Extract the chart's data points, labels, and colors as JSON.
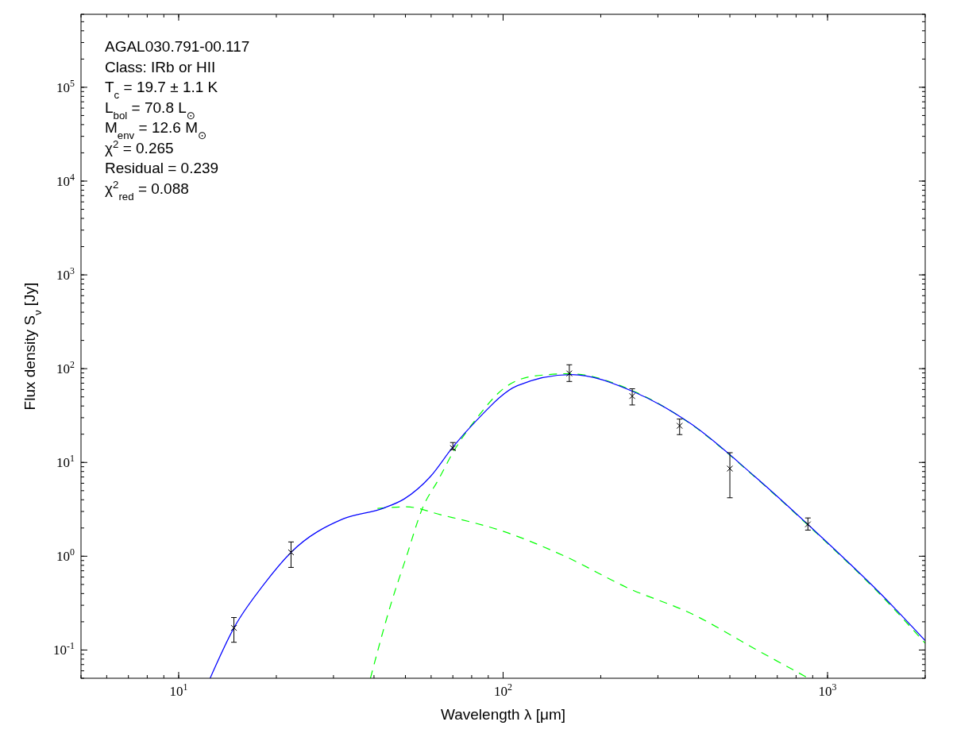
{
  "chart_data": {
    "type": "scatter",
    "xlabel": "Wavelength λ [μm]",
    "ylabel": "Flux density S$_{ν}$ [Jy]",
    "log": "xy",
    "grid": false,
    "xlim": [
      5,
      2000
    ],
    "ylim": [
      0.05,
      600000
    ],
    "xticks": [
      {
        "value": 10,
        "label": "10$^{1}$"
      },
      {
        "value": 100,
        "label": "10$^{2}$"
      },
      {
        "value": 1000,
        "label": "10$^{3}$"
      }
    ],
    "yticks": [
      {
        "value": 0.1,
        "label": "10$^{-1}$"
      },
      {
        "value": 1,
        "label": "10$^{0}$"
      },
      {
        "value": 10,
        "label": "10$^{1}$"
      },
      {
        "value": 100,
        "label": "10$^{2}$"
      },
      {
        "value": 1000,
        "label": "10$^{3}$"
      },
      {
        "value": 10000,
        "label": "10$^{4}$"
      },
      {
        "value": 100000,
        "label": "10$^{5}$"
      }
    ],
    "annotations": [
      "AGAL030.791-00.117",
      "Class: IRb or HII",
      "T$_{c}$ = 19.7 ± 1.1 K",
      "L$_{bol}$ = 70.8 L$_{⊙}$",
      "M$_{env}$ = 12.6 M$_{⊙}$",
      "χ$^{2}$ = 0.265",
      "Residual = 0.239",
      "χ$^{2}$$_{red}$ = 0.088"
    ],
    "series": [
      {
        "type": "line",
        "color": "#00ff00",
        "line_style": "dashed",
        "marker": "none",
        "x": [
          39,
          45.1,
          50.4,
          56.4,
          63.1,
          70,
          83.6,
          100,
          124,
          160,
          254,
          380,
          597,
          935,
          1465,
          2000
        ],
        "values": [
          0.05,
          0.309,
          1.0,
          3.24,
          6.5,
          12.7,
          30.7,
          60.8,
          83.2,
          88.3,
          57,
          25.5,
          7.0,
          1.7,
          0.38,
          0.118
        ]
      },
      {
        "type": "line",
        "color": "#00ff00",
        "line_style": "dashed",
        "marker": "none",
        "x": [
          41,
          50.4,
          64.2,
          98.9,
          155,
          243,
          380,
          597,
          874
        ],
        "values": [
          3.24,
          3.36,
          2.77,
          1.87,
          1.0,
          0.457,
          0.245,
          0.103,
          0.05
        ]
      },
      {
        "type": "line",
        "color": "#0000ff",
        "line_style": "solid",
        "marker": "none",
        "x": [
          12.5,
          14.8,
          18.3,
          22.2,
          32.2,
          42.6,
          49.6,
          59.7,
          70,
          82.6,
          110.6,
          162,
          254,
          380,
          597,
          935,
          1465,
          2000
        ],
        "values": [
          0.05,
          0.172,
          0.5,
          1.1,
          2.51,
          3.24,
          4.09,
          7.08,
          14.6,
          27.8,
          65.8,
          86.5,
          56.2,
          25.7,
          7.08,
          1.73,
          0.391,
          0.126
        ]
      },
      {
        "type": "scatter",
        "color": "#000000",
        "marker": "cross",
        "x": [
          14.8,
          22.2,
          70,
          160,
          250,
          350,
          500,
          870
        ],
        "values": [
          0.172,
          1.1,
          14.2,
          89,
          51,
          24.6,
          8.6,
          2.19
        ],
        "errors": [
          [
            0.121,
            0.222
          ],
          [
            0.76,
            1.42
          ],
          [
            13.7,
            16.3
          ],
          [
            73,
            110
          ],
          [
            41,
            61
          ],
          [
            19.8,
            29
          ],
          [
            4.2,
            12.7
          ],
          [
            1.9,
            2.56
          ]
        ]
      }
    ]
  }
}
